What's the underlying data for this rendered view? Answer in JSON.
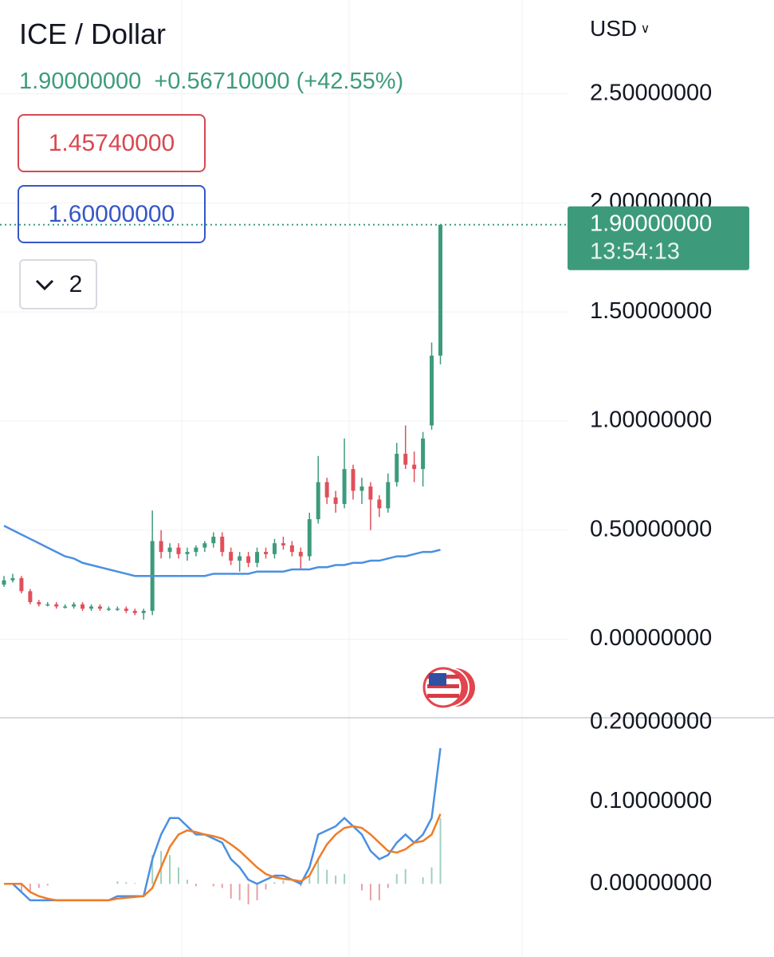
{
  "chart_data": [
    {
      "type": "candlestick",
      "title": "ICE / Dollar",
      "currency": "USD",
      "last_price": {
        "value": 1.9,
        "label": "1.90000000"
      },
      "change": {
        "value": 0.5671,
        "label": "+0.56710000"
      },
      "change_pct": {
        "value": 42.55,
        "label": "(+42.55%)"
      },
      "countdown": "13:54:13",
      "legend_values": [
        {
          "value": 1.4574,
          "label": "1.45740000",
          "color": "#d9474f"
        },
        {
          "value": 1.6,
          "label": "1.60000000",
          "color": "#3656c8"
        }
      ],
      "collapsed_count": 2,
      "up_color": "#3d9b7c",
      "down_color": "#e0505a",
      "grid": true,
      "ylim": [
        -0.36,
        2.93
      ],
      "yticks": [
        {
          "value": 0,
          "label": "0.00000000"
        },
        {
          "value": 0.5,
          "label": "0.50000000"
        },
        {
          "value": 1,
          "label": "1.00000000"
        },
        {
          "value": 1.5,
          "label": "1.50000000"
        },
        {
          "value": 2,
          "label": "2.00000000"
        },
        {
          "value": 2.5,
          "label": "2.50000000"
        }
      ],
      "open": [
        0.25,
        0.27,
        0.28,
        0.22,
        0.17,
        0.16,
        0.16,
        0.15,
        0.15,
        0.16,
        0.14,
        0.15,
        0.14,
        0.14,
        0.14,
        0.13,
        0.12,
        0.13,
        0.45,
        0.4,
        0.42,
        0.39,
        0.4,
        0.42,
        0.44,
        0.47,
        0.4,
        0.36,
        0.38,
        0.35,
        0.4,
        0.39,
        0.44,
        0.43,
        0.4,
        0.38,
        0.55,
        0.72,
        0.65,
        0.62,
        0.78,
        0.68,
        0.7,
        0.64,
        0.6,
        0.72,
        0.85,
        0.8,
        0.78,
        0.98,
        1.3
      ],
      "high": [
        0.29,
        0.3,
        0.29,
        0.23,
        0.18,
        0.17,
        0.17,
        0.16,
        0.17,
        0.17,
        0.16,
        0.16,
        0.15,
        0.15,
        0.15,
        0.14,
        0.14,
        0.59,
        0.5,
        0.44,
        0.44,
        0.42,
        0.43,
        0.45,
        0.49,
        0.49,
        0.42,
        0.4,
        0.4,
        0.42,
        0.42,
        0.46,
        0.47,
        0.45,
        0.42,
        0.58,
        0.84,
        0.74,
        0.68,
        0.92,
        0.8,
        0.74,
        0.72,
        0.66,
        0.76,
        0.9,
        0.98,
        0.86,
        0.95,
        1.36,
        1.9
      ],
      "low": [
        0.24,
        0.26,
        0.21,
        0.16,
        0.15,
        0.15,
        0.14,
        0.14,
        0.14,
        0.13,
        0.13,
        0.13,
        0.13,
        0.13,
        0.12,
        0.11,
        0.09,
        0.11,
        0.37,
        0.37,
        0.37,
        0.36,
        0.38,
        0.4,
        0.42,
        0.38,
        0.34,
        0.31,
        0.33,
        0.33,
        0.37,
        0.37,
        0.41,
        0.38,
        0.32,
        0.36,
        0.53,
        0.62,
        0.58,
        0.6,
        0.64,
        0.62,
        0.5,
        0.56,
        0.58,
        0.7,
        0.78,
        0.72,
        0.7,
        0.96,
        1.26
      ],
      "close": [
        0.27,
        0.28,
        0.22,
        0.17,
        0.16,
        0.16,
        0.15,
        0.15,
        0.16,
        0.14,
        0.15,
        0.14,
        0.14,
        0.14,
        0.13,
        0.12,
        0.13,
        0.45,
        0.4,
        0.42,
        0.39,
        0.4,
        0.42,
        0.44,
        0.47,
        0.4,
        0.36,
        0.38,
        0.35,
        0.4,
        0.39,
        0.44,
        0.43,
        0.4,
        0.38,
        0.55,
        0.72,
        0.65,
        0.62,
        0.78,
        0.68,
        0.7,
        0.64,
        0.6,
        0.72,
        0.85,
        0.8,
        0.78,
        0.92,
        1.3,
        1.9
      ],
      "series": [
        {
          "color": "#4a90e2",
          "values": [
            0.52,
            0.5,
            0.48,
            0.46,
            0.44,
            0.42,
            0.4,
            0.38,
            0.37,
            0.35,
            0.34,
            0.33,
            0.32,
            0.31,
            0.3,
            0.29,
            0.29,
            0.29,
            0.29,
            0.29,
            0.29,
            0.29,
            0.29,
            0.29,
            0.3,
            0.3,
            0.3,
            0.3,
            0.3,
            0.31,
            0.31,
            0.31,
            0.31,
            0.32,
            0.32,
            0.32,
            0.33,
            0.33,
            0.34,
            0.34,
            0.35,
            0.35,
            0.36,
            0.36,
            0.37,
            0.38,
            0.38,
            0.39,
            0.4,
            0.4,
            0.41
          ]
        }
      ]
    },
    {
      "type": "macd",
      "ylim": [
        -0.089,
        0.202
      ],
      "yticks": [
        {
          "value": 0,
          "label": "0.00000000"
        },
        {
          "value": 0.1,
          "label": "0.10000000"
        },
        {
          "value": 0.2,
          "label": "0.20000000"
        }
      ],
      "histogram": {
        "up_color": "#9fd0c0",
        "down_color": "#e8a0a4",
        "values": [
          0,
          0,
          -0.01,
          -0.01,
          -0.005,
          -0.002,
          0,
          0,
          0,
          0,
          0,
          0,
          0,
          0.003,
          0.002,
          0.001,
          0,
          0.035,
          0.04,
          0.035,
          0.02,
          0.005,
          -0.003,
          0,
          -0.003,
          -0.005,
          -0.018,
          -0.02,
          -0.025,
          -0.02,
          -0.007,
          0.002,
          0.004,
          0,
          -0.003,
          0.01,
          0.03,
          0.017,
          0.01,
          0.012,
          0,
          -0.008,
          -0.02,
          -0.02,
          -0.005,
          0.012,
          0.018,
          0,
          0.008,
          0.02,
          0.08
        ]
      },
      "series": [
        {
          "color": "#4a90e2",
          "values": [
            0,
            0,
            -0.01,
            -0.02,
            -0.02,
            -0.02,
            -0.02,
            -0.02,
            -0.02,
            -0.02,
            -0.02,
            -0.02,
            -0.02,
            -0.015,
            -0.015,
            -0.015,
            -0.015,
            0.03,
            0.06,
            0.08,
            0.08,
            0.07,
            0.06,
            0.06,
            0.055,
            0.05,
            0.03,
            0.02,
            0.005,
            0,
            0.005,
            0.01,
            0.01,
            0.005,
            0,
            0.02,
            0.06,
            0.065,
            0.07,
            0.08,
            0.07,
            0.06,
            0.04,
            0.03,
            0.035,
            0.05,
            0.06,
            0.05,
            0.06,
            0.08,
            0.165
          ]
        },
        {
          "color": "#f07c28",
          "values": [
            0,
            0,
            0,
            -0.01,
            -0.015,
            -0.018,
            -0.02,
            -0.02,
            -0.02,
            -0.02,
            -0.02,
            -0.02,
            -0.02,
            -0.018,
            -0.017,
            -0.016,
            -0.015,
            -0.005,
            0.02,
            0.045,
            0.06,
            0.065,
            0.063,
            0.06,
            0.058,
            0.055,
            0.048,
            0.04,
            0.03,
            0.02,
            0.012,
            0.008,
            0.006,
            0.005,
            0.003,
            0.01,
            0.03,
            0.048,
            0.06,
            0.068,
            0.07,
            0.068,
            0.06,
            0.05,
            0.04,
            0.038,
            0.042,
            0.05,
            0.052,
            0.06,
            0.085
          ]
        }
      ]
    }
  ]
}
